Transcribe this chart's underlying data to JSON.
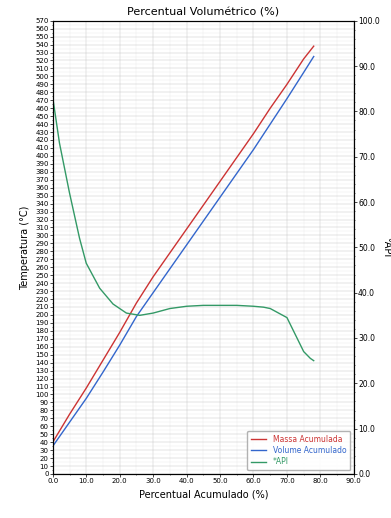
{
  "title": "Percentual Volumétrico (%)",
  "xlabel": "Percentual Acumulado (%)",
  "ylabel_left": "Temperatura (°C)",
  "ylabel_right": "°API",
  "xlim": [
    0.0,
    90.0
  ],
  "ylim_left": [
    0,
    570
  ],
  "ylim_right": [
    0.0,
    100.0
  ],
  "xticks": [
    0.0,
    10.0,
    20.0,
    30.0,
    40.0,
    50.0,
    60.0,
    70.0,
    80.0,
    90.0
  ],
  "yticks_left": [
    0,
    10,
    20,
    30,
    40,
    50,
    60,
    70,
    80,
    90,
    100,
    110,
    120,
    130,
    140,
    150,
    160,
    170,
    180,
    190,
    200,
    210,
    220,
    230,
    240,
    250,
    260,
    270,
    280,
    290,
    300,
    310,
    320,
    330,
    340,
    350,
    360,
    370,
    380,
    390,
    400,
    410,
    420,
    430,
    440,
    450,
    460,
    470,
    480,
    490,
    500,
    510,
    520,
    530,
    540,
    550,
    560,
    570
  ],
  "yticks_right": [
    0.0,
    10.0,
    20.0,
    30.0,
    40.0,
    50.0,
    60.0,
    70.0,
    80.0,
    90.0,
    100.0
  ],
  "massa_x": [
    0.0,
    5.0,
    10.0,
    15.0,
    20.0,
    25.0,
    30.0,
    35.0,
    40.0,
    45.0,
    50.0,
    55.0,
    60.0,
    65.0,
    70.0,
    75.0,
    78.0
  ],
  "massa_y": [
    40.0,
    75.0,
    108.0,
    143.0,
    178.0,
    215.0,
    248.0,
    278.0,
    308.0,
    338.0,
    368.0,
    398.0,
    428.0,
    460.0,
    490.0,
    522.0,
    538.0
  ],
  "volume_x": [
    0.0,
    5.0,
    10.0,
    15.0,
    20.0,
    25.0,
    30.0,
    35.0,
    40.0,
    45.0,
    50.0,
    55.0,
    60.0,
    65.0,
    70.0,
    75.0,
    78.0
  ],
  "volume_y": [
    35.0,
    65.0,
    95.0,
    128.0,
    162.0,
    198.0,
    228.0,
    258.0,
    288.0,
    318.0,
    348.0,
    378.0,
    408.0,
    440.0,
    472.0,
    505.0,
    525.0
  ],
  "api_x": [
    0.2,
    2.0,
    5.0,
    8.0,
    10.0,
    14.0,
    18.0,
    22.0,
    26.0,
    30.0,
    35.0,
    40.0,
    45.0,
    50.0,
    55.0,
    60.0,
    63.0,
    65.0,
    70.0,
    73.0,
    75.0,
    77.0,
    78.0
  ],
  "api_y": [
    82.0,
    73.0,
    62.0,
    52.0,
    46.5,
    41.0,
    37.5,
    35.5,
    35.0,
    35.5,
    36.5,
    37.0,
    37.2,
    37.2,
    37.2,
    37.0,
    36.8,
    36.5,
    34.5,
    30.0,
    27.0,
    25.5,
    25.0
  ],
  "massa_color": "#cc3333",
  "volume_color": "#3366cc",
  "api_color": "#339966",
  "legend_labels": [
    "Massa Acumulada",
    "Volume Acumulado",
    "*API"
  ],
  "background_color": "#ffffff",
  "grid_color": "#c0c0c0",
  "grid_minor_color": "#d8d8d8"
}
